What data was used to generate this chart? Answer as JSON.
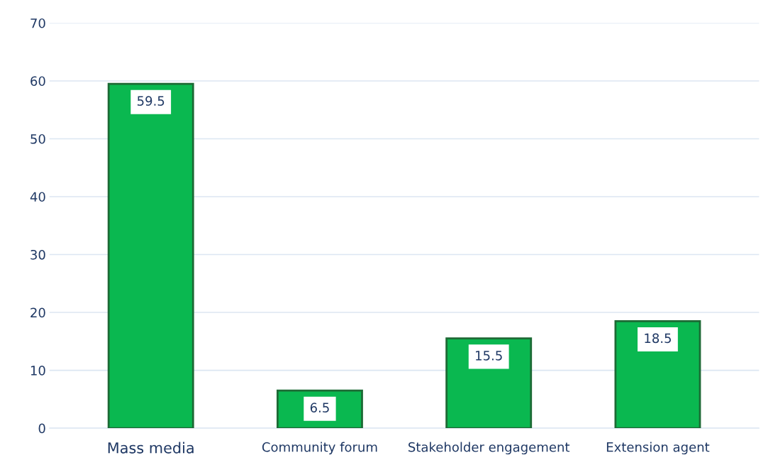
{
  "chart_data": {
    "type": "bar",
    "categories": [
      "Mass media",
      "Community forum",
      "Stakeholder engagement",
      "Extension agent"
    ],
    "values": [
      59.5,
      6.5,
      15.5,
      18.5
    ],
    "color": "#0ab850",
    "ylim": [
      0,
      70
    ],
    "yticks": [
      0,
      10,
      20,
      30,
      40,
      50,
      60,
      70
    ],
    "grid": "y",
    "data_labels": true
  }
}
